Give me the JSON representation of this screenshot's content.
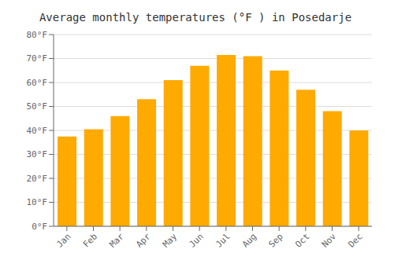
{
  "chart_data": {
    "type": "bar",
    "title": "Average monthly temperatures (°F ) in Posedarje",
    "categories": [
      "Jan",
      "Feb",
      "Mar",
      "Apr",
      "May",
      "Jun",
      "Jul",
      "Aug",
      "Sep",
      "Oct",
      "Nov",
      "Dec"
    ],
    "values": [
      37.5,
      40.5,
      46,
      53,
      61,
      67,
      71.5,
      71,
      65,
      57,
      48,
      40
    ],
    "color": "#FFAA00",
    "ylim": [
      0,
      80
    ],
    "yticks": [
      {
        "value": 0,
        "label": "0°F"
      },
      {
        "value": 10,
        "label": "10°F"
      },
      {
        "value": 20,
        "label": "20°F"
      },
      {
        "value": 30,
        "label": "30°F"
      },
      {
        "value": 40,
        "label": "40°F"
      },
      {
        "value": 50,
        "label": "50°F"
      },
      {
        "value": 60,
        "label": "60°F"
      },
      {
        "value": 70,
        "label": "70°F"
      },
      {
        "value": 80,
        "label": "80°F"
      }
    ],
    "grid": true
  }
}
